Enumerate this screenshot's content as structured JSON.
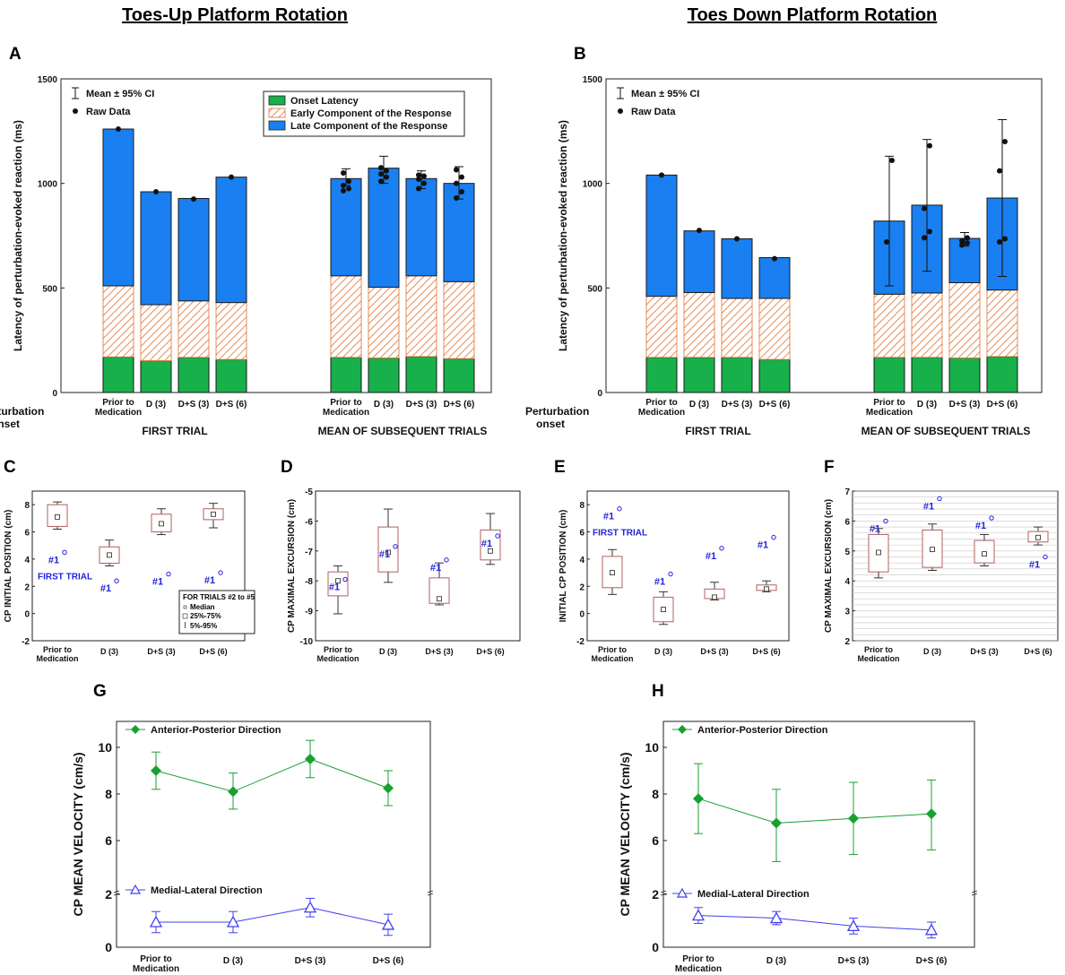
{
  "headers": {
    "left": "Toes-Up Platform Rotation",
    "right": "Toes Down Platform Rotation"
  },
  "panels": {
    "A": "A",
    "B": "B",
    "C": "C",
    "D": "D",
    "E": "E",
    "F": "F",
    "G": "G",
    "H": "H"
  },
  "colors": {
    "onset": "#18b04a",
    "early": "#e07030",
    "late": "#1a7ff0",
    "box": "#b06060",
    "ap": "#18a032",
    "ml": "#4040ee"
  },
  "conditions": [
    "Prior to Medication",
    "D (3)",
    "D+S (3)",
    "D+S (6)"
  ],
  "bar_common": {
    "ylabel": "Latency of perturbation-evoked reaction (ms)",
    "ylim": [
      0,
      1500
    ],
    "yticks": [
      "0",
      "500",
      "1000",
      "1500"
    ],
    "row_label": "Perturbation onset",
    "group_first": "FIRST TRIAL",
    "group_mean": "MEAN OF SUBSEQUENT TRIALS",
    "legend_ci": "Mean ± 95% CI",
    "legend_raw": "Raw Data",
    "legend_onset": "Onset Latency",
    "legend_early": "Early Component of the Response",
    "legend_late": "Late Component of the Response"
  },
  "box_common": {
    "first_trial": "FIRST TRIAL",
    "marker": "#1",
    "legend_title": "FOR TRIALS #2 to #5",
    "legend_median": "Median",
    "legend_iqr": "25%-75%",
    "legend_range": "5%-95%"
  },
  "vel_common": {
    "ylabel": "CP MEAN VELOCITY (cm/s)",
    "ap_label": "Anterior-Posterior Direction",
    "ml_label": "Medial-Lateral Direction",
    "yticks": [
      "0",
      "2",
      "6",
      "8",
      "10"
    ]
  },
  "chart_data": [
    {
      "panel": "A",
      "type": "bar",
      "stacked": true,
      "ylabel": "Latency of perturbation-evoked reaction (ms)",
      "ylim": [
        0,
        1500
      ],
      "categories": [
        "Prior to Medication",
        "D (3)",
        "D+S (3)",
        "D+S (6)",
        "Prior to Medication",
        "D (3)",
        "D+S (3)",
        "D+S (6)"
      ],
      "groups": [
        "FIRST TRIAL",
        "MEAN OF SUBSEQUENT TRIALS"
      ],
      "series": [
        {
          "name": "Onset Latency",
          "values": [
            170,
            152,
            168,
            158,
            168,
            165,
            172,
            162
          ]
        },
        {
          "name": "Early Component of the Response",
          "values": [
            340,
            268,
            270,
            272,
            390,
            338,
            386,
            368
          ]
        },
        {
          "name": "Late Component of the Response",
          "values": [
            750,
            540,
            490,
            600,
            465,
            570,
            465,
            470
          ]
        }
      ],
      "ci_low": [
        null,
        null,
        null,
        null,
        990,
        1000,
        975,
        925
      ],
      "ci_high": [
        null,
        null,
        null,
        null,
        1070,
        1130,
        1060,
        1080
      ],
      "raw": [
        [
          1260
        ],
        [
          960
        ],
        [
          925
        ],
        [
          1030
        ],
        [
          965,
          975,
          990,
          1010,
          1050
        ],
        [
          1010,
          1030,
          1045,
          1060,
          1075
        ],
        [
          975,
          1000,
          1020,
          1035,
          1040
        ],
        [
          930,
          960,
          1000,
          1030,
          1065
        ]
      ]
    },
    {
      "panel": "B",
      "type": "bar",
      "stacked": true,
      "ylabel": "Latency of perturbation-evoked reaction (ms)",
      "ylim": [
        0,
        1500
      ],
      "categories": [
        "Prior to Medication",
        "D (3)",
        "D+S (3)",
        "D+S (6)",
        "Prior to Medication",
        "D (3)",
        "D+S (3)",
        "D+S (6)"
      ],
      "groups": [
        "FIRST TRIAL",
        "MEAN OF SUBSEQUENT TRIALS"
      ],
      "series": [
        {
          "name": "Onset Latency",
          "values": [
            168,
            168,
            168,
            158,
            168,
            168,
            165,
            172
          ]
        },
        {
          "name": "Early Component of the Response",
          "values": [
            292,
            310,
            282,
            292,
            302,
            308,
            360,
            318
          ]
        },
        {
          "name": "Late Component of the Response",
          "values": [
            580,
            295,
            285,
            195,
            350,
            420,
            212,
            440
          ]
        }
      ],
      "ci_low": [
        null,
        null,
        null,
        null,
        510,
        580,
        700,
        555
      ],
      "ci_high": [
        null,
        null,
        null,
        null,
        1130,
        1210,
        765,
        1305
      ],
      "raw": [
        [
          1040
        ],
        [
          775
        ],
        [
          735
        ],
        [
          640
        ],
        [
          720,
          1110
        ],
        [
          740,
          770,
          880,
          1180
        ],
        [
          705,
          715,
          725,
          740
        ],
        [
          720,
          735,
          1060,
          1200
        ]
      ]
    },
    {
      "panel": "C",
      "type": "box",
      "ylabel": "CP INITIAL POSITION (cm)",
      "ylim": [
        -2,
        9
      ],
      "yticks": [
        "-2",
        "0",
        "2",
        "4",
        "6",
        "8"
      ],
      "categories": [
        "Prior to Medication",
        "D (3)",
        "D+S (3)",
        "D+S (6)"
      ],
      "boxes": [
        {
          "min": 6.2,
          "q1": 6.4,
          "median": 7.1,
          "q3": 8.0,
          "max": 8.2
        },
        {
          "min": 3.5,
          "q1": 3.7,
          "median": 4.3,
          "q3": 4.9,
          "max": 5.4
        },
        {
          "min": 5.8,
          "q1": 6.0,
          "median": 6.6,
          "q3": 7.3,
          "max": 7.7
        },
        {
          "min": 6.3,
          "q1": 6.9,
          "median": 7.3,
          "q3": 7.7,
          "max": 8.1
        }
      ],
      "first_trial": [
        4.5,
        2.4,
        2.9,
        3.0
      ]
    },
    {
      "panel": "D",
      "type": "box",
      "ylabel": "CP MAXIMAL EXCURSION (cm)",
      "ylim": [
        -10,
        -5
      ],
      "yticks": [
        "-10",
        "-9",
        "-8",
        "-7",
        "-6",
        "-5"
      ],
      "categories": [
        "Prior to Medication",
        "D (3)",
        "D+S (3)",
        "D+S (6)"
      ],
      "boxes": [
        {
          "min": -9.1,
          "q1": -8.5,
          "median": -8.0,
          "q3": -7.7,
          "max": -7.5
        },
        {
          "min": -8.05,
          "q1": -7.7,
          "median": -7.05,
          "q3": -6.2,
          "max": -5.6
        },
        {
          "min": -8.8,
          "q1": -8.75,
          "median": -8.6,
          "q3": -7.9,
          "max": -7.4
        },
        {
          "min": -7.45,
          "q1": -7.3,
          "median": -7.0,
          "q3": -6.3,
          "max": -5.75
        }
      ],
      "first_trial": [
        -7.95,
        -6.85,
        -7.3,
        -6.5
      ]
    },
    {
      "panel": "E",
      "type": "box",
      "ylabel": "INITIAL CP POSITION (cm)",
      "ylim": [
        -2,
        9
      ],
      "yticks": [
        "-2",
        "0",
        "2",
        "4",
        "6",
        "8"
      ],
      "categories": [
        "Prior to Medication",
        "D (3)",
        "D+S (3)",
        "D+S (6)"
      ],
      "boxes": [
        {
          "min": 1.4,
          "q1": 1.9,
          "median": 3.0,
          "q3": 4.2,
          "max": 4.7
        },
        {
          "min": -0.8,
          "q1": -0.6,
          "median": 0.3,
          "q3": 1.2,
          "max": 1.6
        },
        {
          "min": 1.0,
          "q1": 1.1,
          "median": 1.2,
          "q3": 1.8,
          "max": 2.3
        },
        {
          "min": 1.6,
          "q1": 1.7,
          "median": 1.8,
          "q3": 2.1,
          "max": 2.4
        }
      ],
      "first_trial": [
        7.7,
        2.9,
        4.8,
        5.6
      ]
    },
    {
      "panel": "F",
      "type": "box",
      "ylabel": "CP MAXIMAL EXCURSION (cm)",
      "ylim": [
        2,
        7
      ],
      "yticks": [
        "2",
        "3",
        "4",
        "5",
        "6",
        "7"
      ],
      "categories": [
        "Prior to Medication",
        "D (3)",
        "D+S (3)",
        "D+S (6)"
      ],
      "boxes": [
        {
          "min": 4.1,
          "q1": 4.3,
          "median": 4.95,
          "q3": 5.55,
          "max": 5.75
        },
        {
          "min": 4.35,
          "q1": 4.45,
          "median": 5.05,
          "q3": 5.7,
          "max": 5.9
        },
        {
          "min": 4.5,
          "q1": 4.6,
          "median": 4.9,
          "q3": 5.35,
          "max": 5.55
        },
        {
          "min": 5.2,
          "q1": 5.3,
          "median": 5.45,
          "q3": 5.65,
          "max": 5.8
        }
      ],
      "first_trial": [
        6.0,
        6.75,
        6.1,
        4.8
      ]
    },
    {
      "panel": "G",
      "type": "line",
      "ylabel": "CP MEAN VELOCITY (cm/s)",
      "categories": [
        "Prior to Medication",
        "D (3)",
        "D+S (3)",
        "D+S (6)"
      ],
      "series": [
        {
          "name": "Anterior-Posterior Direction",
          "values": [
            9.0,
            8.1,
            9.5,
            8.25
          ],
          "ci_low": [
            8.2,
            7.35,
            8.7,
            7.5
          ],
          "ci_high": [
            9.8,
            8.9,
            10.3,
            9.0
          ]
        },
        {
          "name": "Medial-Lateral Direction",
          "values": [
            0.95,
            0.95,
            1.5,
            0.85
          ],
          "ci_low": [
            0.55,
            0.55,
            1.15,
            0.45
          ],
          "ci_high": [
            1.35,
            1.35,
            1.85,
            1.25
          ]
        }
      ]
    },
    {
      "panel": "H",
      "type": "line",
      "ylabel": "CP MEAN VELOCITY (cm/s)",
      "categories": [
        "Prior to Medication",
        "D (3)",
        "D+S (3)",
        "D+S (6)"
      ],
      "series": [
        {
          "name": "Anterior-Posterior Direction",
          "values": [
            7.8,
            6.75,
            6.95,
            7.15
          ],
          "ci_low": [
            6.3,
            5.1,
            5.4,
            5.6
          ],
          "ci_high": [
            9.3,
            8.2,
            8.5,
            8.6
          ]
        },
        {
          "name": "Medial-Lateral Direction",
          "values": [
            1.2,
            1.1,
            0.8,
            0.65
          ],
          "ci_low": [
            0.9,
            0.85,
            0.5,
            0.35
          ],
          "ci_high": [
            1.5,
            1.35,
            1.1,
            0.95
          ]
        }
      ]
    }
  ]
}
